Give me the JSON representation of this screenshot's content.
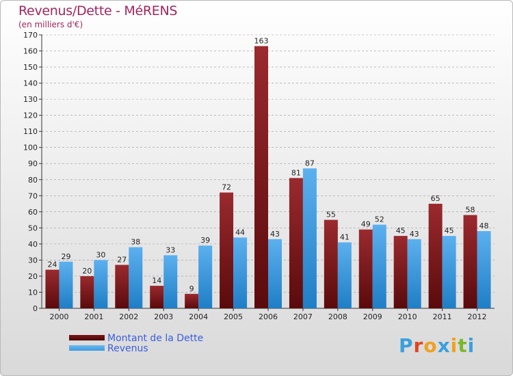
{
  "title": "Revenus/Dette - MéRENS",
  "subtitle": "(en milliers d'€)",
  "logo": {
    "letters": [
      "P",
      "r",
      "o",
      "x",
      "i",
      "t",
      "i"
    ],
    "colors": [
      "#3aa0dc",
      "#e0461e",
      "#f0a020",
      "#3aa0dc",
      "#f0a020",
      "#7ab828",
      "#3aa0dc"
    ]
  },
  "chart_data": {
    "type": "bar",
    "title": "Revenus/Dette - MéRENS",
    "ylabel": "(en milliers d'€)",
    "categories": [
      "2000",
      "2001",
      "2002",
      "2003",
      "2004",
      "2005",
      "2006",
      "2007",
      "2008",
      "2009",
      "2010",
      "2011",
      "2012"
    ],
    "series": [
      {
        "name": "Montant de la Dette",
        "color": "#7a1418",
        "values": [
          24,
          20,
          27,
          14,
          9,
          72,
          163,
          81,
          55,
          49,
          45,
          65,
          58
        ]
      },
      {
        "name": "Revenus",
        "color": "#3d9ae0",
        "values": [
          29,
          30,
          38,
          33,
          39,
          44,
          43,
          87,
          41,
          52,
          43,
          45,
          48
        ]
      }
    ],
    "ylim": [
      0,
      170
    ],
    "yticks": [
      0,
      10,
      20,
      30,
      40,
      50,
      60,
      70,
      80,
      90,
      100,
      110,
      120,
      130,
      140,
      150,
      160,
      170
    ],
    "grid": true,
    "legend": "bottom-left"
  }
}
